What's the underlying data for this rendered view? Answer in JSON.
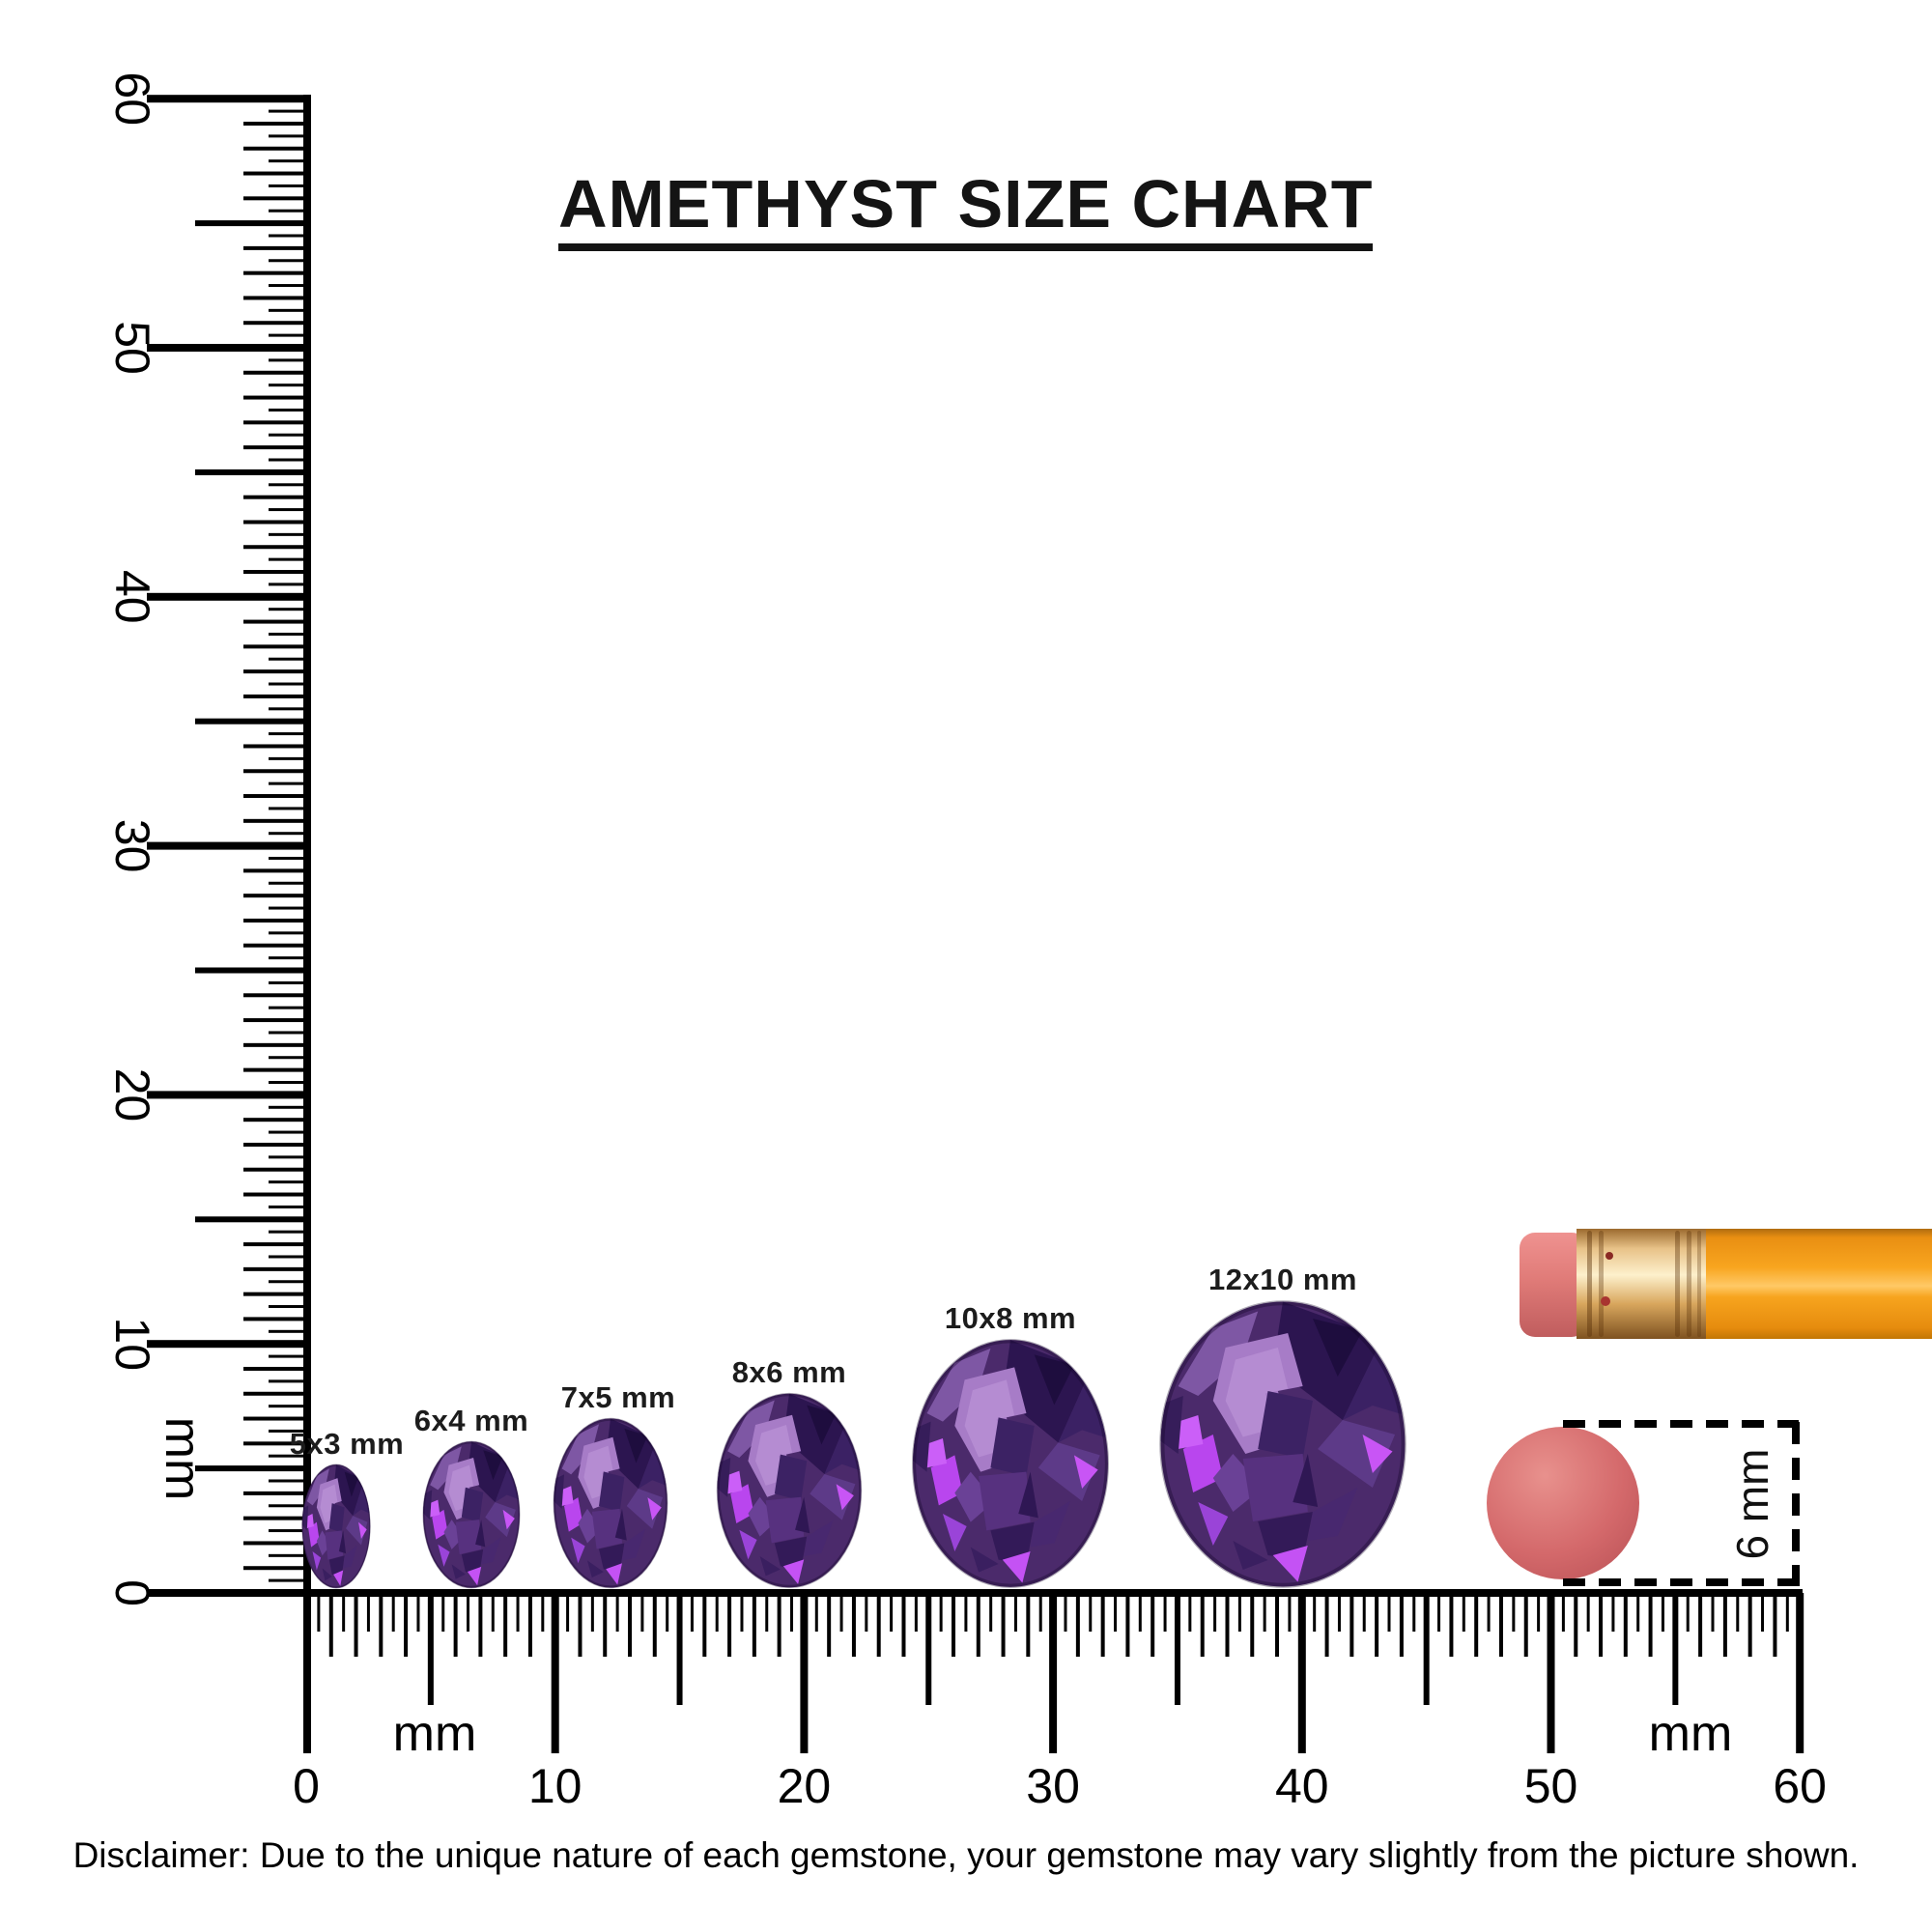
{
  "title": "AMETHYST SIZE CHART",
  "disclaimer": "Disclaimer: Due to the unique nature of each gemstone, your gemstone may vary slightly from the picture shown.",
  "vertical_ruler": {
    "unit_label": "mm",
    "min_mm": 0,
    "max_mm": 60,
    "tick_step_mm": 0.5,
    "major_labels": [
      "0",
      "10",
      "20",
      "30",
      "40",
      "50",
      "60"
    ]
  },
  "horizontal_ruler": {
    "unit_label_left": "mm",
    "unit_label_right": "mm",
    "min_mm": 0,
    "max_mm": 60,
    "tick_step_mm": 0.5,
    "major_labels": [
      "0",
      "10",
      "20",
      "30",
      "40",
      "50",
      "60"
    ]
  },
  "gems": [
    {
      "label": "5x3 mm",
      "height_mm": 5,
      "width_mm": 3
    },
    {
      "label": "6x4 mm",
      "height_mm": 6,
      "width_mm": 4
    },
    {
      "label": "7x5 mm",
      "height_mm": 7,
      "width_mm": 5
    },
    {
      "label": "8x6 mm",
      "height_mm": 8,
      "width_mm": 6
    },
    {
      "label": "10x8 mm",
      "height_mm": 10,
      "width_mm": 8
    },
    {
      "label": "12x10 mm",
      "height_mm": 12,
      "width_mm": 10
    }
  ],
  "eraser_dot": {
    "dimension_label": "6 mm"
  },
  "colors": {
    "ink": "#000000",
    "gem_base": "#4b2a6b",
    "gem_dark": "#2c1550",
    "gem_light": "#a77cc7",
    "gem_flash": "#c855f5",
    "eraser_pink": "#e07b78",
    "ferrule_gold": "#d9a75e",
    "pencil_orange": "#f59f1d",
    "dot_red": "#d4696b"
  }
}
